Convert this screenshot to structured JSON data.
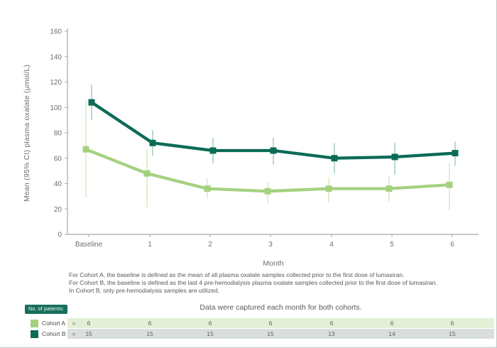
{
  "chart_data": {
    "type": "line",
    "title": "",
    "xlabel": "Month",
    "ylabel": "Mean (95% CI) plasma oxalate (µmol/L)",
    "ylim": [
      0,
      160
    ],
    "ytick_step": 20,
    "grid": false,
    "legend_position": "bottom-left",
    "categories": [
      "Baseline",
      "1",
      "2",
      "3",
      "4",
      "5",
      "6"
    ],
    "series": [
      {
        "name": "Cohort A",
        "color": "#a5d17f",
        "ci_color": "#d9ecc7",
        "values": [
          67,
          48,
          36,
          34,
          36,
          36,
          39
        ],
        "ci_lower": [
          29,
          21,
          28,
          24,
          25,
          26,
          19
        ],
        "ci_upper": [
          105,
          67,
          44,
          41,
          45,
          46,
          56
        ]
      },
      {
        "name": "Cohort B",
        "color": "#0c6b57",
        "ci_color": "#a9cec6",
        "values": [
          104,
          72,
          66,
          66,
          60,
          61,
          64
        ],
        "ci_lower": [
          90,
          62,
          56,
          55,
          48,
          47,
          54
        ],
        "ci_upper": [
          118,
          82,
          76,
          76,
          72,
          72,
          73
        ]
      }
    ]
  },
  "footnotes": [
    "For Cohort A, the baseline is defined as the mean of all plasma oxalate samples collected prior to the first dose of lumasiran.",
    "For Cohort B, the baseline is defined as the last 4 pre-hemodialysis plasma oxalate samples collected prior to the first dose of lumasiran.",
    "In Cohort B, only pre-hemodialysis samples are utilized."
  ],
  "patients": {
    "badge": "No. of patients:",
    "note": "Data were captured each month for both cohorts.",
    "equals": "=",
    "rows": [
      {
        "name": "Cohort A",
        "color": "#a5d17f",
        "band": "#e3f0d7",
        "counts": [
          "6",
          "6",
          "6",
          "6",
          "6",
          "6",
          "6"
        ]
      },
      {
        "name": "Cohort B",
        "color": "#0c6b57",
        "band": "#d9dfdd",
        "counts": [
          "15",
          "15",
          "15",
          "15",
          "13",
          "14",
          "15"
        ]
      }
    ]
  }
}
